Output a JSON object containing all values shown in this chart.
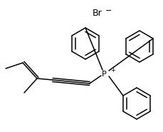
{
  "bg_color": "#ffffff",
  "line_color": "#000000",
  "line_width": 1.1,
  "figsize": [
    2.29,
    1.85
  ],
  "dpi": 100,
  "br_label": "Br",
  "br_charge": "−",
  "p_label": "P",
  "p_charge": "+"
}
